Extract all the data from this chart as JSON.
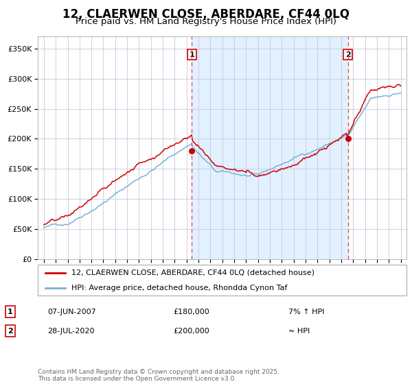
{
  "title": "12, CLAERWEN CLOSE, ABERDARE, CF44 0LQ",
  "subtitle": "Price paid vs. HM Land Registry's House Price Index (HPI)",
  "legend_line1": "12, CLAERWEN CLOSE, ABERDARE, CF44 0LQ (detached house)",
  "legend_line2": "HPI: Average price, detached house, Rhondda Cynon Taf",
  "transaction1": {
    "label": "1",
    "date": "07-JUN-2007",
    "price": 180000,
    "note": "7% ↑ HPI"
  },
  "transaction2": {
    "label": "2",
    "date": "28-JUL-2020",
    "price": 200000,
    "note": "≈ HPI"
  },
  "vline1_x": 2007.44,
  "vline2_x": 2020.57,
  "footnote": "Contains HM Land Registry data © Crown copyright and database right 2025.\nThis data is licensed under the Open Government Licence v3.0.",
  "ylim": [
    0,
    370000
  ],
  "xlim": [
    1994.5,
    2025.5
  ],
  "red_color": "#cc0000",
  "blue_color": "#7ab0d4",
  "bg_fill_color": "#ddeeff",
  "grid_color": "#c8c8dc",
  "title_fontsize": 12,
  "subtitle_fontsize": 9.5,
  "tick_fontsize": 8
}
